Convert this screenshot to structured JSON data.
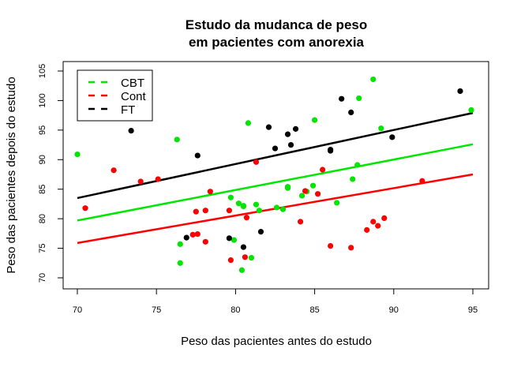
{
  "chart_data": {
    "type": "scatter",
    "title": [
      "Estudo da mudanca de peso",
      "em pacientes com anorexia"
    ],
    "xlabel": "Peso das pacientes antes do estudo",
    "ylabel": "Peso das pacientes depois do estudo",
    "xlim": [
      69.4,
      95.6
    ],
    "ylim": [
      68.5,
      106.8
    ],
    "xticks": [
      70,
      75,
      80,
      85,
      90,
      95
    ],
    "yticks": [
      70,
      75,
      80,
      85,
      90,
      95,
      100,
      105
    ],
    "legend_position": "top-left",
    "series": [
      {
        "name": "CBT",
        "color": "#00E600",
        "x": [
          80.5,
          84.9,
          81.5,
          82.6,
          79.9,
          88.7,
          94.9,
          76.3,
          81.0,
          80.5,
          85.0,
          89.2,
          81.3,
          76.5,
          70.0,
          80.4,
          83.3,
          83.0,
          87.7,
          84.2,
          86.4,
          76.5,
          80.2,
          87.8,
          83.3,
          79.7,
          84.5,
          80.8,
          87.4
        ],
        "y": [
          82.2,
          85.6,
          81.4,
          81.9,
          76.4,
          103.6,
          98.4,
          93.4,
          73.4,
          82.1,
          96.7,
          95.3,
          82.4,
          72.5,
          90.9,
          71.3,
          85.4,
          81.6,
          89.1,
          83.9,
          82.7,
          75.7,
          82.6,
          100.4,
          85.2,
          83.6,
          84.6,
          96.2,
          86.7
        ],
        "fit": {
          "x": [
            70,
            95
          ],
          "y": [
            79.7,
            92.6
          ]
        }
      },
      {
        "name": "Cont",
        "color": "#FF0000",
        "x": [
          80.7,
          89.4,
          91.8,
          74.0,
          78.1,
          88.3,
          87.3,
          75.1,
          80.6,
          78.4,
          77.6,
          88.7,
          81.3,
          78.1,
          70.5,
          77.3,
          85.2,
          86.0,
          84.1,
          79.7,
          85.5,
          84.4,
          79.6,
          77.5,
          72.3,
          89.0
        ],
        "y": [
          80.2,
          80.1,
          86.4,
          86.3,
          76.1,
          78.1,
          75.1,
          86.7,
          73.5,
          84.6,
          77.4,
          79.5,
          89.6,
          81.4,
          81.8,
          77.3,
          84.2,
          75.4,
          79.5,
          73.0,
          88.3,
          84.7,
          81.4,
          81.2,
          88.2,
          78.8
        ],
        "fit": {
          "x": [
            70,
            95
          ],
          "y": [
            75.9,
            87.5
          ]
        }
      },
      {
        "name": "FT",
        "color": "#000000",
        "x": [
          83.8,
          83.3,
          86.0,
          82.5,
          86.7,
          79.6,
          76.9,
          94.2,
          73.4,
          80.5,
          81.6,
          82.1,
          77.6,
          83.5,
          89.9,
          86.0,
          87.3
        ],
        "y": [
          95.2,
          94.3,
          91.5,
          91.9,
          100.3,
          76.7,
          76.8,
          101.6,
          94.9,
          75.2,
          77.8,
          95.5,
          90.7,
          92.5,
          93.8,
          91.7,
          98.0
        ],
        "fit": {
          "x": [
            70,
            95
          ],
          "y": [
            83.5,
            97.9
          ]
        }
      }
    ]
  }
}
